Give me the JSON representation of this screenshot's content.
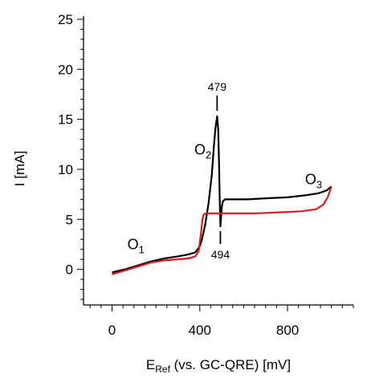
{
  "chart_data": {
    "type": "line",
    "xlabel": "E",
    "xlabel_sub": "Ref",
    "xlabel_rest": " (vs. GC-QRE) [mV]",
    "ylabel": "I [mA]",
    "xlim": [
      -130,
      1100
    ],
    "ylim": [
      -3,
      25
    ],
    "xticks": [
      0,
      400,
      800
    ],
    "yticks": [
      0,
      5,
      10,
      15,
      20,
      25
    ],
    "grid": false,
    "legend": "none",
    "series": [
      {
        "color": "#000000",
        "x": [
          0,
          60,
          120,
          180,
          240,
          300,
          350,
          380,
          400,
          410,
          425,
          440,
          455,
          465,
          472,
          479,
          484,
          488,
          491,
          494,
          497,
          500,
          505,
          515,
          530,
          560,
          620,
          700,
          800,
          880,
          940,
          980,
          1000
        ],
        "y": [
          -0.3,
          0.0,
          0.4,
          0.8,
          1.1,
          1.3,
          1.5,
          1.7,
          2.3,
          3.0,
          4.5,
          6.6,
          9.5,
          12.5,
          14.2,
          15.3,
          14.0,
          10.5,
          7.0,
          4.3,
          5.2,
          6.2,
          6.8,
          7.0,
          7.0,
          7.0,
          7.0,
          7.1,
          7.2,
          7.4,
          7.6,
          7.9,
          8.3
        ]
      },
      {
        "color": "#e0191c",
        "x": [
          0,
          60,
          120,
          180,
          240,
          300,
          350,
          380,
          395,
          405,
          412,
          418,
          430,
          480,
          560,
          660,
          760,
          860,
          930,
          965,
          985,
          1000
        ],
        "y": [
          -0.5,
          -0.1,
          0.3,
          0.7,
          0.9,
          1.0,
          1.1,
          1.3,
          1.8,
          3.5,
          5.0,
          5.5,
          5.6,
          5.6,
          5.6,
          5.6,
          5.7,
          5.8,
          6.0,
          6.5,
          7.3,
          8.3
        ]
      }
    ],
    "annotations": {
      "peak_top": {
        "text": "479",
        "x": 479,
        "y": 15.3
      },
      "peak_bottom": {
        "text": "494",
        "x": 494,
        "y": 4.3
      },
      "O1": {
        "label": "O",
        "sub": "1",
        "x": 70,
        "y": 2.0
      },
      "O2": {
        "label": "O",
        "sub": "2",
        "x": 375,
        "y": 11.5
      },
      "O3": {
        "label": "O",
        "sub": "3",
        "x": 880,
        "y": 8.5
      }
    }
  }
}
